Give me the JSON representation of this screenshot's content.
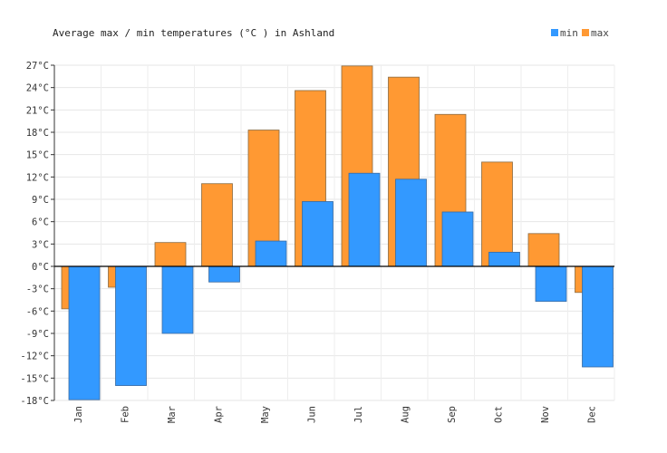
{
  "chart_data": {
    "type": "bar",
    "title": "Average max / min temperatures (°C ) in Ashland",
    "xlabel": "",
    "ylabel": "",
    "categories": [
      "Jan",
      "Feb",
      "Mar",
      "Apr",
      "May",
      "Jun",
      "Jul",
      "Aug",
      "Sep",
      "Oct",
      "Nov",
      "Dec"
    ],
    "series": [
      {
        "name": "max",
        "color": "#ff9933",
        "values": [
          -5.7,
          -2.8,
          3.2,
          11.1,
          18.3,
          23.6,
          26.9,
          25.4,
          20.4,
          14.0,
          4.4,
          -3.5
        ]
      },
      {
        "name": "min",
        "color": "#3399ff",
        "values": [
          -17.9,
          -16.0,
          -9.0,
          -2.1,
          3.4,
          8.7,
          12.5,
          11.7,
          7.3,
          1.9,
          -4.7,
          -13.5
        ]
      }
    ],
    "ylim": [
      -18,
      27
    ],
    "yticks": [
      27,
      24,
      21,
      18,
      15,
      12,
      9,
      6,
      3,
      0,
      -3,
      -6,
      -9,
      -12,
      -15,
      -18
    ],
    "ytick_suffix": "°C",
    "grid": true,
    "legend_position": "top-right"
  }
}
